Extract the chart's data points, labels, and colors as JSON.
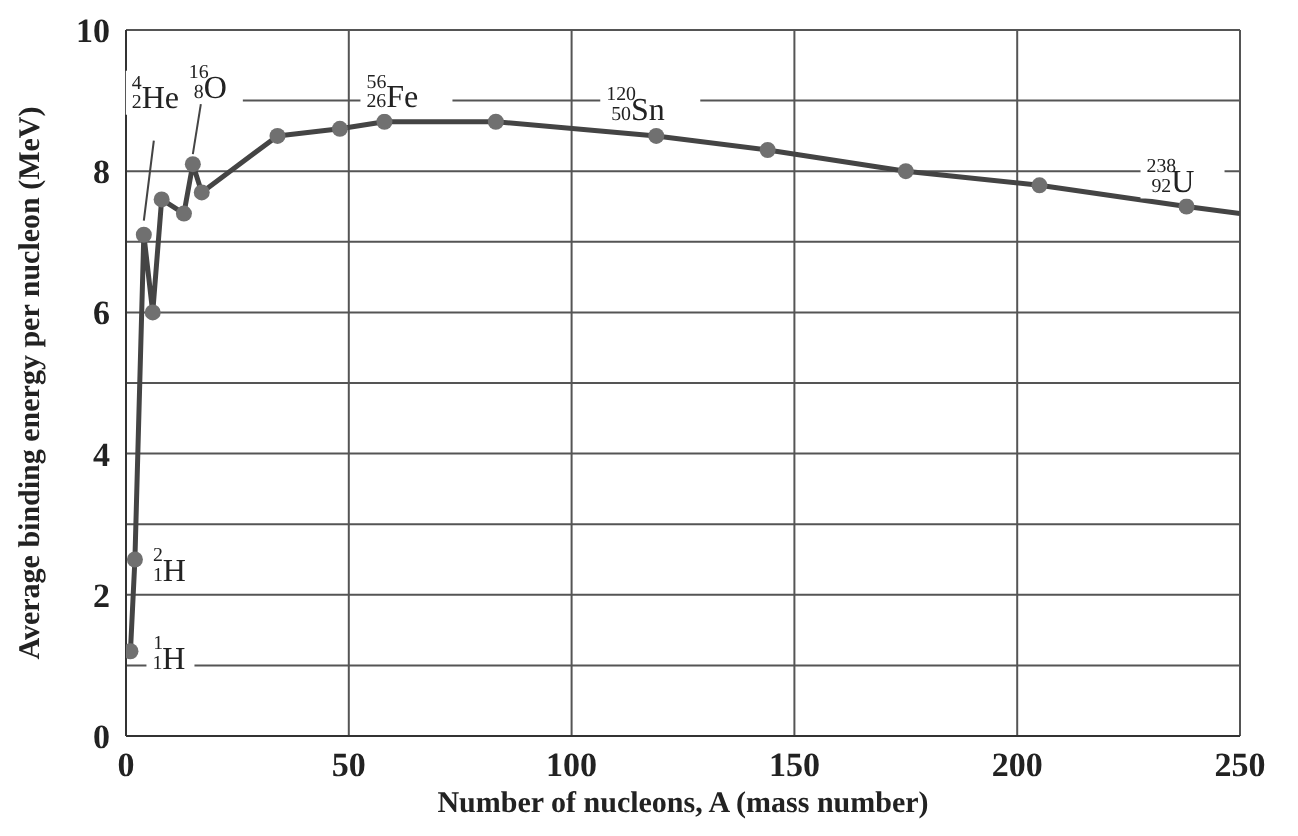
{
  "chart_data": {
    "type": "line",
    "xlabel": "Number of nucleons, A (mass number)",
    "ylabel": "Average binding energy per nucleon (MeV)",
    "xlim": [
      0,
      250
    ],
    "xticks": [
      0,
      50,
      100,
      150,
      200,
      250
    ],
    "ylim": [
      0,
      10
    ],
    "yticks": [
      0,
      {
        "value": 1,
        "label": null
      },
      2,
      {
        "value": 3,
        "label": null
      },
      4,
      {
        "value": 5,
        "label": null
      },
      6,
      {
        "value": 7,
        "label": null
      },
      8,
      {
        "value": 9,
        "label": null
      },
      10
    ],
    "grid": true,
    "series": [
      {
        "marker": "none",
        "color": "#444444",
        "x": [
          1,
          2,
          4,
          6,
          8,
          13,
          15,
          17,
          34,
          48,
          58,
          83,
          119,
          144,
          175,
          205,
          238,
          250
        ],
        "values": [
          1.2,
          2.5,
          7.1,
          6.0,
          7.6,
          7.4,
          8.1,
          7.7,
          8.5,
          8.6,
          8.7,
          8.7,
          8.5,
          8.3,
          8.0,
          7.8,
          7.5,
          7.4
        ]
      },
      {
        "type": "scatter",
        "marker": "circle",
        "color": "#707070",
        "x": [
          1,
          2,
          4,
          6,
          8,
          13,
          15,
          17,
          34,
          48,
          58,
          83,
          119,
          144,
          175,
          205,
          238
        ],
        "values": [
          1.2,
          2.5,
          7.1,
          6.0,
          7.6,
          7.4,
          8.1,
          7.7,
          8.5,
          8.6,
          8.7,
          8.7,
          8.5,
          8.3,
          8.0,
          7.8,
          7.5
        ]
      }
    ],
    "annotations": [
      {
        "text": "$^{1}$$_{1}$H",
        "x": 1,
        "y": 1.2
      },
      {
        "text": "$^{2}$$_{1}$H",
        "x": 2,
        "y": 2.5
      },
      {
        "text": "$^{4}$$_{2}$He",
        "x": 4,
        "y": 7.1
      },
      {
        "text": "$^{16}$$_{8}$O",
        "x": 15,
        "y": 8.1
      },
      {
        "text": "$^{56}$$_{26}$Fe",
        "x": 58,
        "y": 8.7
      },
      {
        "text": "$^{120}$$_{50}$Sn",
        "x": 119,
        "y": 8.5
      },
      {
        "text": "$^{238}$$_{92}$U",
        "x": 238,
        "y": 7.5
      }
    ]
  }
}
